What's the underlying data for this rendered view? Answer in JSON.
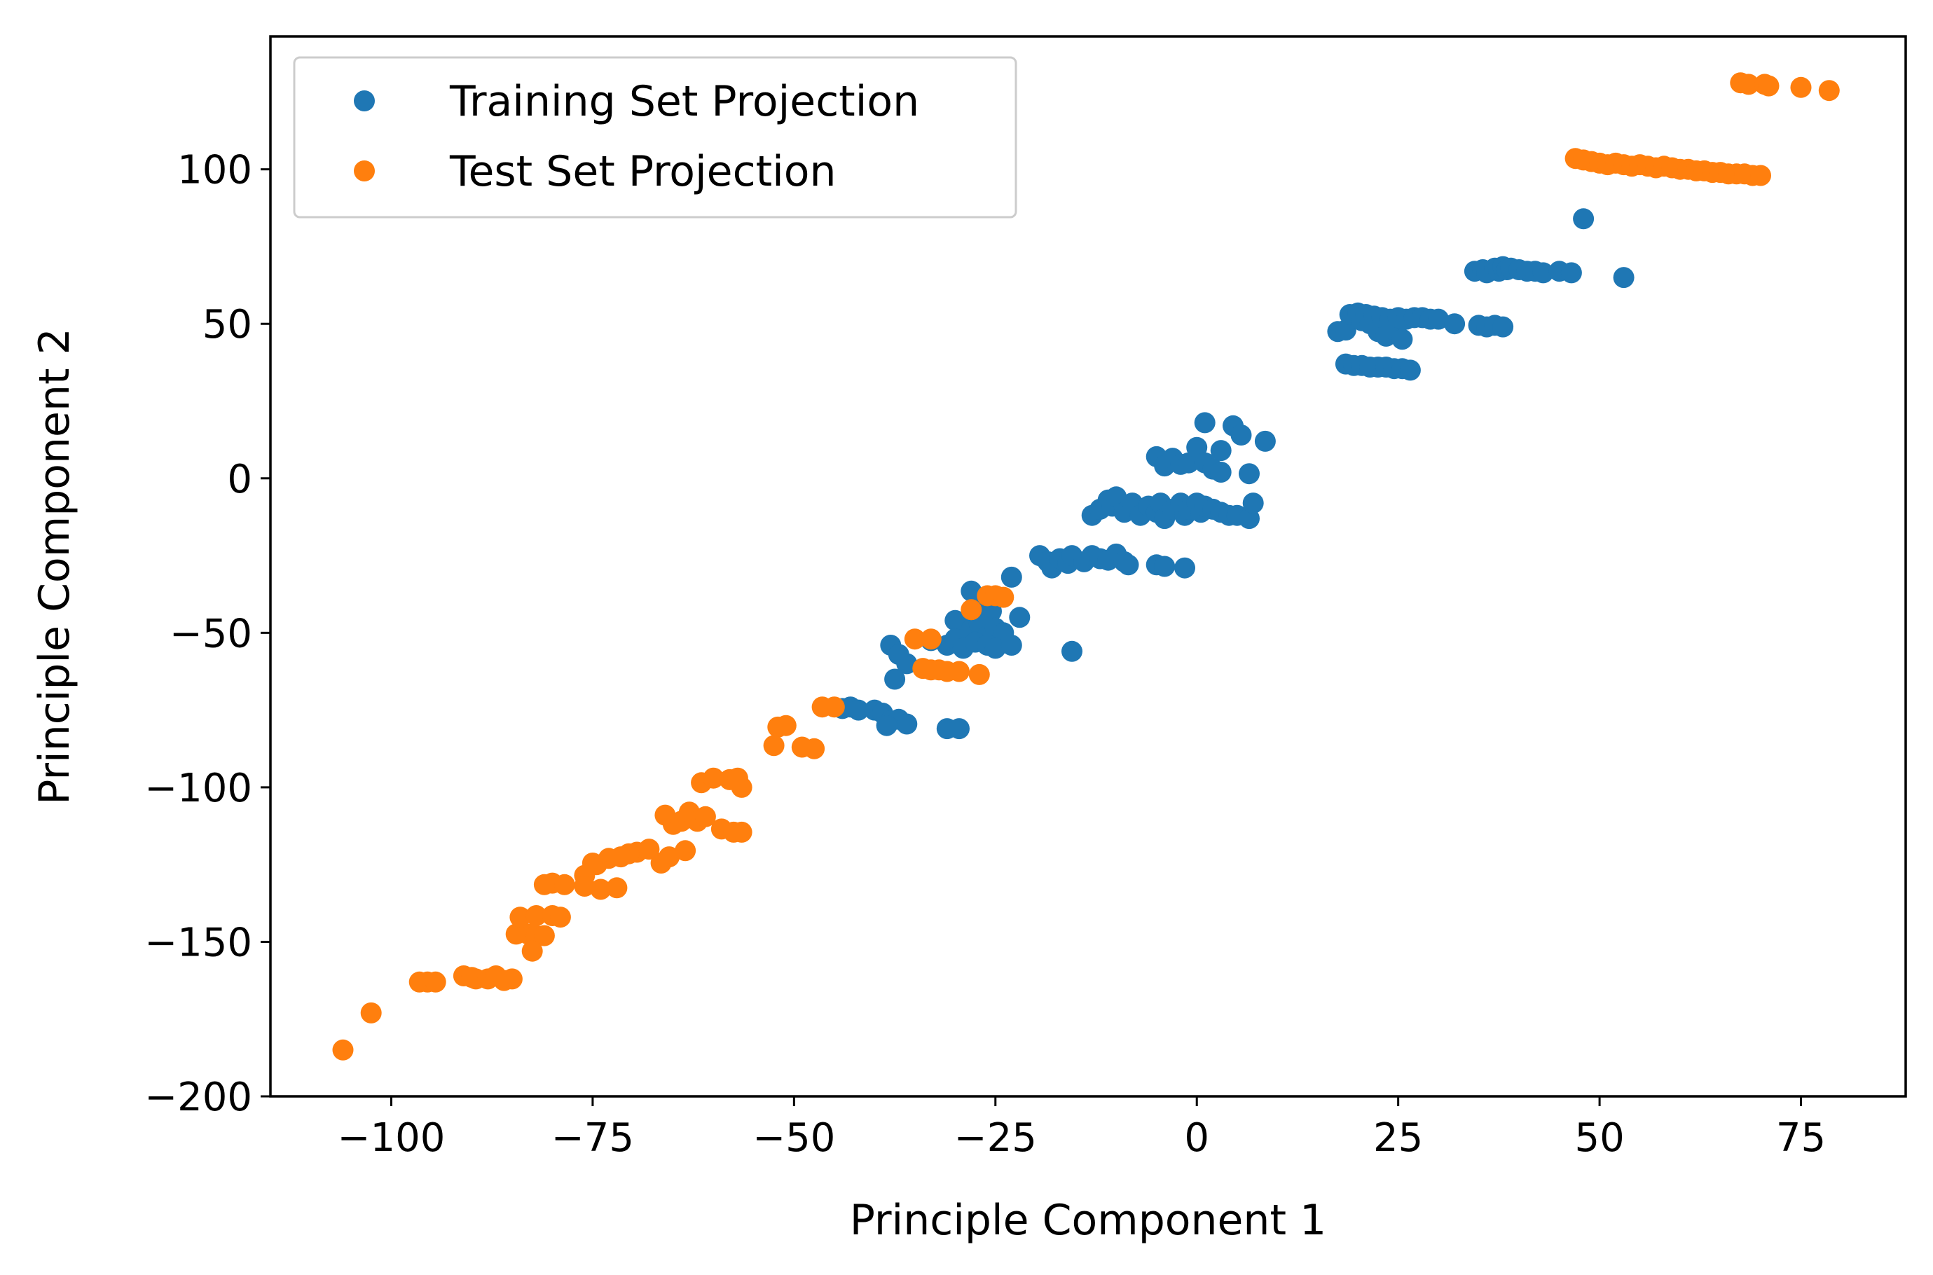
{
  "chart_data": {
    "type": "scatter",
    "title": "",
    "xlabel": "Principle Component 1",
    "ylabel": "Principle Component 2",
    "xlim": [
      -115,
      88
    ],
    "ylim": [
      -200,
      143
    ],
    "xticks": [
      -100,
      -75,
      -50,
      -25,
      0,
      25,
      50,
      75
    ],
    "xtick_labels": [
      "−100",
      "−75",
      "−50",
      "−25",
      "0",
      "25",
      "50",
      "75"
    ],
    "yticks": [
      -200,
      -150,
      -100,
      -50,
      0,
      50,
      100
    ],
    "ytick_labels": [
      "−200",
      "−150",
      "−100",
      "−50",
      "0",
      "50",
      "100"
    ],
    "grid": false,
    "legend_position": "top-left",
    "series": [
      {
        "name": "Training Set Projection",
        "color": "#1f77b4",
        "points": [
          [
            48,
            84
          ],
          [
            53,
            65
          ],
          [
            34.5,
            67
          ],
          [
            35.5,
            67.5
          ],
          [
            36,
            66.5
          ],
          [
            37,
            68
          ],
          [
            37.5,
            67
          ],
          [
            38,
            68.5
          ],
          [
            38.5,
            67.5
          ],
          [
            39,
            68
          ],
          [
            40,
            67.5
          ],
          [
            41,
            67
          ],
          [
            42,
            67
          ],
          [
            43,
            66.5
          ],
          [
            45,
            67
          ],
          [
            46.5,
            66.5
          ],
          [
            17.5,
            47.5
          ],
          [
            18.5,
            48
          ],
          [
            19,
            53
          ],
          [
            20,
            53.5
          ],
          [
            20.5,
            51
          ],
          [
            21,
            53
          ],
          [
            21.5,
            50
          ],
          [
            22,
            52.5
          ],
          [
            22.5,
            47.5
          ],
          [
            23,
            52
          ],
          [
            23.5,
            46
          ],
          [
            24,
            51.5
          ],
          [
            24.5,
            48
          ],
          [
            25,
            52
          ],
          [
            25.5,
            45
          ],
          [
            26,
            51.5
          ],
          [
            27,
            52
          ],
          [
            28,
            52
          ],
          [
            29,
            51.5
          ],
          [
            30,
            51.5
          ],
          [
            32,
            50
          ],
          [
            35,
            49.5
          ],
          [
            36,
            49
          ],
          [
            37,
            49.5
          ],
          [
            38,
            49
          ],
          [
            18.5,
            37
          ],
          [
            19.5,
            36.5
          ],
          [
            20.5,
            36.5
          ],
          [
            21.5,
            36
          ],
          [
            22.5,
            36
          ],
          [
            23.5,
            36
          ],
          [
            24.5,
            35.5
          ],
          [
            25.5,
            35.5
          ],
          [
            26.5,
            35
          ],
          [
            1,
            18
          ],
          [
            4.5,
            17
          ],
          [
            5.5,
            14
          ],
          [
            8.5,
            12
          ],
          [
            3,
            9
          ],
          [
            -5,
            7
          ],
          [
            -4,
            4
          ],
          [
            -3,
            6.5
          ],
          [
            -2,
            4.5
          ],
          [
            -1,
            5
          ],
          [
            0,
            10
          ],
          [
            1,
            5
          ],
          [
            2,
            3
          ],
          [
            3,
            2
          ],
          [
            6.5,
            1.5
          ],
          [
            -13,
            -12
          ],
          [
            -12,
            -10
          ],
          [
            -11,
            -7
          ],
          [
            -10.5,
            -9
          ],
          [
            -10,
            -6
          ],
          [
            -9,
            -11
          ],
          [
            -8,
            -8
          ],
          [
            -7,
            -12
          ],
          [
            -6,
            -9
          ],
          [
            -5,
            -11
          ],
          [
            -4.5,
            -8
          ],
          [
            -4,
            -13
          ],
          [
            -3,
            -10
          ],
          [
            -2,
            -8
          ],
          [
            -1.5,
            -12
          ],
          [
            -1,
            -10
          ],
          [
            0,
            -8
          ],
          [
            0.5,
            -11
          ],
          [
            1,
            -9
          ],
          [
            2,
            -10
          ],
          [
            3,
            -11
          ],
          [
            4,
            -12
          ],
          [
            5,
            -12
          ],
          [
            6.5,
            -13
          ],
          [
            7,
            -8
          ],
          [
            -19.5,
            -25
          ],
          [
            -18.5,
            -27
          ],
          [
            -18,
            -29
          ],
          [
            -17,
            -26
          ],
          [
            -16,
            -27.5
          ],
          [
            -15.5,
            -25
          ],
          [
            -14,
            -27
          ],
          [
            -13,
            -25
          ],
          [
            -12,
            -26
          ],
          [
            -11,
            -26.5
          ],
          [
            -10,
            -24.5
          ],
          [
            -9,
            -27
          ],
          [
            -8.5,
            -28
          ],
          [
            -5,
            -28
          ],
          [
            -4,
            -28.5
          ],
          [
            -1.5,
            -29
          ],
          [
            -28,
            -36.5
          ],
          [
            -26.5,
            -40
          ],
          [
            -25.5,
            -43
          ],
          [
            -23,
            -32
          ],
          [
            -22,
            -45
          ],
          [
            -29,
            -48
          ],
          [
            -30,
            -46
          ],
          [
            -28,
            -49
          ],
          [
            -27,
            -47
          ],
          [
            -26,
            -51
          ],
          [
            -25,
            -48.5
          ],
          [
            -24,
            -50
          ],
          [
            -33,
            -52.5
          ],
          [
            -31,
            -54
          ],
          [
            -30,
            -52
          ],
          [
            -29,
            -55
          ],
          [
            -27.5,
            -53
          ],
          [
            -26,
            -54
          ],
          [
            -25,
            -55
          ],
          [
            -23,
            -54
          ],
          [
            -15.5,
            -56
          ],
          [
            -38,
            -54
          ],
          [
            -37,
            -57
          ],
          [
            -36,
            -60
          ],
          [
            -37.5,
            -65
          ],
          [
            -44,
            -74.5
          ],
          [
            -43,
            -74
          ],
          [
            -42,
            -75
          ],
          [
            -40,
            -75
          ],
          [
            -39,
            -76
          ],
          [
            -38,
            -78.5
          ],
          [
            -37,
            -78
          ],
          [
            -36,
            -79.5
          ],
          [
            -38.5,
            -80
          ],
          [
            -31,
            -81
          ],
          [
            -29.5,
            -81
          ]
        ]
      },
      {
        "name": "Test Set Projection",
        "color": "#ff7f0e",
        "points": [
          [
            67.5,
            128
          ],
          [
            68.5,
            127.5
          ],
          [
            70.5,
            127.5
          ],
          [
            71,
            127
          ],
          [
            75,
            126.5
          ],
          [
            78.5,
            125.5
          ],
          [
            47,
            103.5
          ],
          [
            48,
            103
          ],
          [
            49,
            102.5
          ],
          [
            50,
            102
          ],
          [
            51,
            101.5
          ],
          [
            52,
            102
          ],
          [
            53,
            101.5
          ],
          [
            54,
            101
          ],
          [
            55,
            101.5
          ],
          [
            56,
            101
          ],
          [
            57,
            100.5
          ],
          [
            58,
            101
          ],
          [
            59,
            100.5
          ],
          [
            60,
            100
          ],
          [
            61,
            100
          ],
          [
            62,
            99.5
          ],
          [
            63,
            99.5
          ],
          [
            64,
            99
          ],
          [
            65,
            99
          ],
          [
            66,
            98.5
          ],
          [
            67,
            98.5
          ],
          [
            68,
            98.5
          ],
          [
            69,
            98
          ],
          [
            70,
            98
          ],
          [
            -35,
            -52
          ],
          [
            -33,
            -52
          ],
          [
            -34,
            -61.5
          ],
          [
            -33,
            -62
          ],
          [
            -32,
            -62
          ],
          [
            -31,
            -62.5
          ],
          [
            -29.5,
            -62.5
          ],
          [
            -27,
            -63.5
          ],
          [
            -28,
            -42.5
          ],
          [
            -26,
            -38
          ],
          [
            -25,
            -38
          ],
          [
            -24,
            -38.5
          ],
          [
            -46.5,
            -74
          ],
          [
            -45,
            -74
          ],
          [
            -52,
            -80.5
          ],
          [
            -51,
            -80
          ],
          [
            -52.5,
            -86.5
          ],
          [
            -49,
            -87
          ],
          [
            -47.5,
            -87.5
          ],
          [
            -61.5,
            -98.5
          ],
          [
            -60,
            -97
          ],
          [
            -58,
            -97.5
          ],
          [
            -57,
            -97
          ],
          [
            -56.5,
            -100
          ],
          [
            -66,
            -109
          ],
          [
            -65,
            -112
          ],
          [
            -64,
            -111
          ],
          [
            -63,
            -108
          ],
          [
            -62,
            -111
          ],
          [
            -61,
            -109.5
          ],
          [
            -59,
            -113.5
          ],
          [
            -57.5,
            -114.5
          ],
          [
            -56.5,
            -114.5
          ],
          [
            -63.5,
            -120.5
          ],
          [
            -66.5,
            -124.5
          ],
          [
            -65.5,
            -122.5
          ],
          [
            -68,
            -120
          ],
          [
            -69.5,
            -121
          ],
          [
            -70.5,
            -121.5
          ],
          [
            -71.5,
            -122.5
          ],
          [
            -73,
            -123
          ],
          [
            -74.5,
            -125
          ],
          [
            -75,
            -124.5
          ],
          [
            -76,
            -128.5
          ],
          [
            -76,
            -132
          ],
          [
            -74,
            -133
          ],
          [
            -72,
            -132.5
          ],
          [
            -78.5,
            -131.5
          ],
          [
            -80,
            -131
          ],
          [
            -81,
            -131.5
          ],
          [
            -84.5,
            -147.5
          ],
          [
            -83,
            -147.5
          ],
          [
            -82,
            -148
          ],
          [
            -81,
            -148
          ],
          [
            -84,
            -142
          ],
          [
            -82,
            -141.5
          ],
          [
            -80,
            -141.5
          ],
          [
            -79,
            -142
          ],
          [
            -82.5,
            -153
          ],
          [
            -96.5,
            -163
          ],
          [
            -95.5,
            -163
          ],
          [
            -94.5,
            -163
          ],
          [
            -91,
            -161
          ],
          [
            -90,
            -161.5
          ],
          [
            -89.5,
            -162
          ],
          [
            -88,
            -162
          ],
          [
            -87,
            -161
          ],
          [
            -86,
            -162.5
          ],
          [
            -85,
            -162
          ],
          [
            -102.5,
            -173
          ],
          [
            -106,
            -185
          ]
        ]
      }
    ]
  }
}
